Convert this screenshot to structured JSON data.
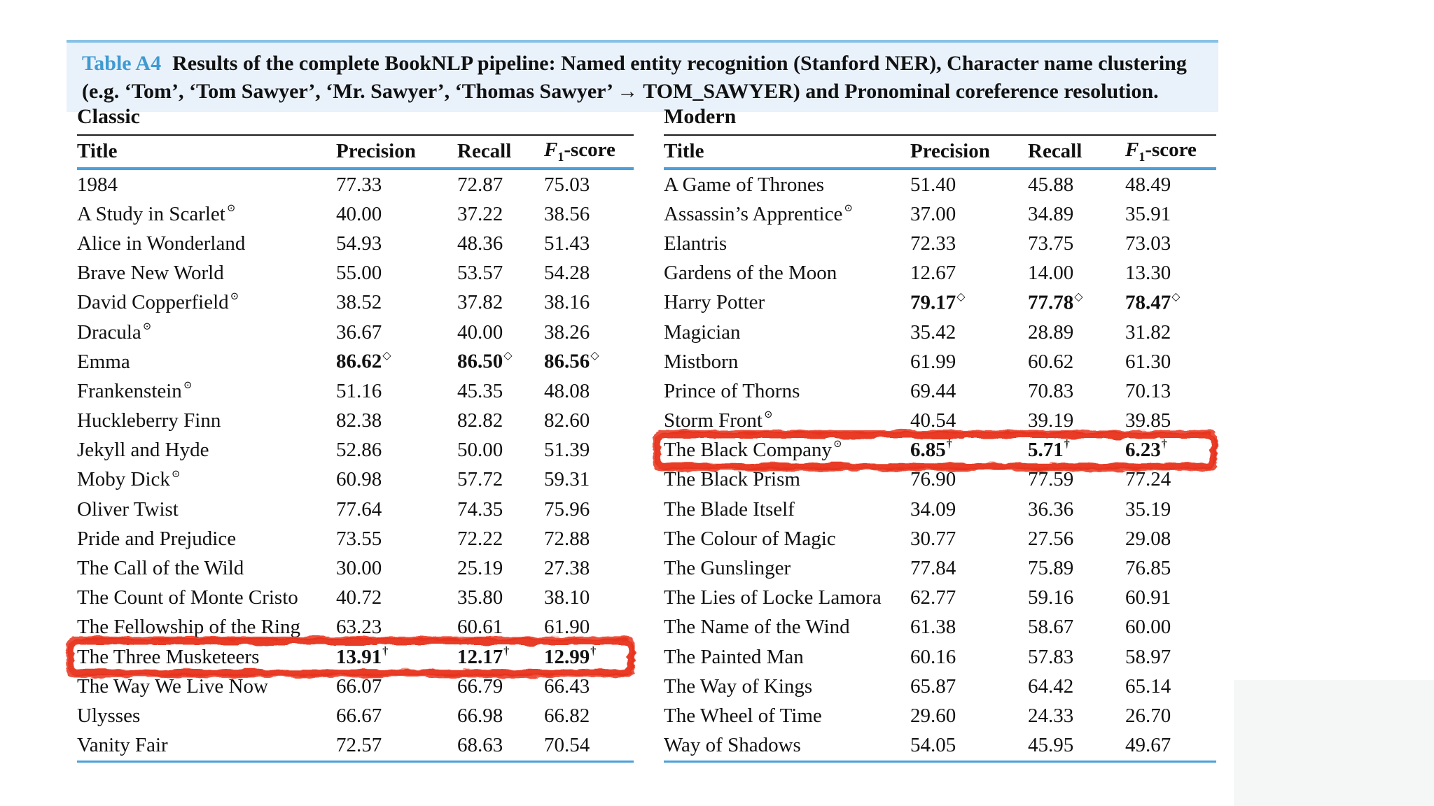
{
  "caption": {
    "label": "Table A4",
    "text": "Results of the complete BookNLP pipeline: Named entity recognition (Stanford NER), Character name clustering (e.g. ‘Tom’, ‘Tom Sawyer’, ‘Mr. Sawyer’, ‘Thomas Sawyer’ → TOM_SAWYER) and Pronominal coreference resolution."
  },
  "columns": {
    "title": "Title",
    "precision": "Precision",
    "recall": "Recall",
    "f1_letter": "F",
    "f1_sub": "1",
    "f1_rest": "-score"
  },
  "symbols": {
    "title_marker": "⊙",
    "diamond": "◇",
    "dagger": "†"
  },
  "colors": {
    "accent_blue": "#4ba0d9",
    "caption_bg": "#e9f1fa",
    "caption_label_blue": "#3f9ad1",
    "annotation_red": "#e8301b"
  },
  "chart_data": {
    "type": "table",
    "title": "Table A4 Results of the complete BookNLP pipeline",
    "groups": [
      {
        "name": "Classic",
        "columns": [
          "Title",
          "Precision",
          "Recall",
          "F1-score"
        ],
        "rows": [
          {
            "title": "1984",
            "title_sup": false,
            "precision": "77.33",
            "recall": "72.87",
            "f1": "75.03",
            "bold": false,
            "marker": null,
            "annotated": false
          },
          {
            "title": "A Study in Scarlet",
            "title_sup": true,
            "precision": "40.00",
            "recall": "37.22",
            "f1": "38.56",
            "bold": false,
            "marker": null,
            "annotated": false
          },
          {
            "title": "Alice in Wonderland",
            "title_sup": false,
            "precision": "54.93",
            "recall": "48.36",
            "f1": "51.43",
            "bold": false,
            "marker": null,
            "annotated": false
          },
          {
            "title": "Brave New World",
            "title_sup": false,
            "precision": "55.00",
            "recall": "53.57",
            "f1": "54.28",
            "bold": false,
            "marker": null,
            "annotated": false
          },
          {
            "title": "David Copperfield",
            "title_sup": true,
            "precision": "38.52",
            "recall": "37.82",
            "f1": "38.16",
            "bold": false,
            "marker": null,
            "annotated": false
          },
          {
            "title": "Dracula",
            "title_sup": true,
            "precision": "36.67",
            "recall": "40.00",
            "f1": "38.26",
            "bold": false,
            "marker": null,
            "annotated": false
          },
          {
            "title": "Emma",
            "title_sup": false,
            "precision": "86.62",
            "recall": "86.50",
            "f1": "86.56",
            "bold": true,
            "marker": "diamond",
            "annotated": false
          },
          {
            "title": "Frankenstein",
            "title_sup": true,
            "precision": "51.16",
            "recall": "45.35",
            "f1": "48.08",
            "bold": false,
            "marker": null,
            "annotated": false
          },
          {
            "title": "Huckleberry Finn",
            "title_sup": false,
            "precision": "82.38",
            "recall": "82.82",
            "f1": "82.60",
            "bold": false,
            "marker": null,
            "annotated": false
          },
          {
            "title": "Jekyll and Hyde",
            "title_sup": false,
            "precision": "52.86",
            "recall": "50.00",
            "f1": "51.39",
            "bold": false,
            "marker": null,
            "annotated": false
          },
          {
            "title": "Moby Dick",
            "title_sup": true,
            "precision": "60.98",
            "recall": "57.72",
            "f1": "59.31",
            "bold": false,
            "marker": null,
            "annotated": false
          },
          {
            "title": "Oliver Twist",
            "title_sup": false,
            "precision": "77.64",
            "recall": "74.35",
            "f1": "75.96",
            "bold": false,
            "marker": null,
            "annotated": false
          },
          {
            "title": "Pride and Prejudice",
            "title_sup": false,
            "precision": "73.55",
            "recall": "72.22",
            "f1": "72.88",
            "bold": false,
            "marker": null,
            "annotated": false
          },
          {
            "title": "The Call of the Wild",
            "title_sup": false,
            "precision": "30.00",
            "recall": "25.19",
            "f1": "27.38",
            "bold": false,
            "marker": null,
            "annotated": false
          },
          {
            "title": "The Count of Monte Cristo",
            "title_sup": false,
            "precision": "40.72",
            "recall": "35.80",
            "f1": "38.10",
            "bold": false,
            "marker": null,
            "annotated": false
          },
          {
            "title": "The Fellowship of the Ring",
            "title_sup": false,
            "precision": "63.23",
            "recall": "60.61",
            "f1": "61.90",
            "bold": false,
            "marker": null,
            "annotated": false
          },
          {
            "title": "The Three Musketeers",
            "title_sup": false,
            "precision": "13.91",
            "recall": "12.17",
            "f1": "12.99",
            "bold": true,
            "marker": "dagger",
            "annotated": true
          },
          {
            "title": "The Way We Live Now",
            "title_sup": false,
            "precision": "66.07",
            "recall": "66.79",
            "f1": "66.43",
            "bold": false,
            "marker": null,
            "annotated": false
          },
          {
            "title": "Ulysses",
            "title_sup": false,
            "precision": "66.67",
            "recall": "66.98",
            "f1": "66.82",
            "bold": false,
            "marker": null,
            "annotated": false
          },
          {
            "title": "Vanity Fair",
            "title_sup": false,
            "precision": "72.57",
            "recall": "68.63",
            "f1": "70.54",
            "bold": false,
            "marker": null,
            "annotated": false
          }
        ]
      },
      {
        "name": "Modern",
        "columns": [
          "Title",
          "Precision",
          "Recall",
          "F1-score"
        ],
        "rows": [
          {
            "title": "A Game of Thrones",
            "title_sup": false,
            "precision": "51.40",
            "recall": "45.88",
            "f1": "48.49",
            "bold": false,
            "marker": null,
            "annotated": false
          },
          {
            "title": "Assassin’s Apprentice",
            "title_sup": true,
            "precision": "37.00",
            "recall": "34.89",
            "f1": "35.91",
            "bold": false,
            "marker": null,
            "annotated": false
          },
          {
            "title": "Elantris",
            "title_sup": false,
            "precision": "72.33",
            "recall": "73.75",
            "f1": "73.03",
            "bold": false,
            "marker": null,
            "annotated": false
          },
          {
            "title": "Gardens of the Moon",
            "title_sup": false,
            "precision": "12.67",
            "recall": "14.00",
            "f1": "13.30",
            "bold": false,
            "marker": null,
            "annotated": false
          },
          {
            "title": "Harry Potter",
            "title_sup": false,
            "precision": "79.17",
            "recall": "77.78",
            "f1": "78.47",
            "bold": true,
            "marker": "diamond",
            "annotated": false
          },
          {
            "title": "Magician",
            "title_sup": false,
            "precision": "35.42",
            "recall": "28.89",
            "f1": "31.82",
            "bold": false,
            "marker": null,
            "annotated": false
          },
          {
            "title": "Mistborn",
            "title_sup": false,
            "precision": "61.99",
            "recall": "60.62",
            "f1": "61.30",
            "bold": false,
            "marker": null,
            "annotated": false
          },
          {
            "title": "Prince of Thorns",
            "title_sup": false,
            "precision": "69.44",
            "recall": "70.83",
            "f1": "70.13",
            "bold": false,
            "marker": null,
            "annotated": false
          },
          {
            "title": "Storm Front",
            "title_sup": true,
            "precision": "40.54",
            "recall": "39.19",
            "f1": "39.85",
            "bold": false,
            "marker": null,
            "annotated": false
          },
          {
            "title": "The Black Company",
            "title_sup": true,
            "precision": "6.85",
            "recall": "5.71",
            "f1": "6.23",
            "bold": true,
            "marker": "dagger",
            "annotated": true
          },
          {
            "title": "The Black Prism",
            "title_sup": false,
            "precision": "76.90",
            "recall": "77.59",
            "f1": "77.24",
            "bold": false,
            "marker": null,
            "annotated": false
          },
          {
            "title": "The Blade Itself",
            "title_sup": false,
            "precision": "34.09",
            "recall": "36.36",
            "f1": "35.19",
            "bold": false,
            "marker": null,
            "annotated": false
          },
          {
            "title": "The Colour of Magic",
            "title_sup": false,
            "precision": "30.77",
            "recall": "27.56",
            "f1": "29.08",
            "bold": false,
            "marker": null,
            "annotated": false
          },
          {
            "title": "The Gunslinger",
            "title_sup": false,
            "precision": "77.84",
            "recall": "75.89",
            "f1": "76.85",
            "bold": false,
            "marker": null,
            "annotated": false
          },
          {
            "title": "The Lies of Locke Lamora",
            "title_sup": false,
            "precision": "62.77",
            "recall": "59.16",
            "f1": "60.91",
            "bold": false,
            "marker": null,
            "annotated": false
          },
          {
            "title": "The Name of the Wind",
            "title_sup": false,
            "precision": "61.38",
            "recall": "58.67",
            "f1": "60.00",
            "bold": false,
            "marker": null,
            "annotated": false
          },
          {
            "title": "The Painted Man",
            "title_sup": false,
            "precision": "60.16",
            "recall": "57.83",
            "f1": "58.97",
            "bold": false,
            "marker": null,
            "annotated": false
          },
          {
            "title": "The Way of Kings",
            "title_sup": false,
            "precision": "65.87",
            "recall": "64.42",
            "f1": "65.14",
            "bold": false,
            "marker": null,
            "annotated": false
          },
          {
            "title": "The Wheel of Time",
            "title_sup": false,
            "precision": "29.60",
            "recall": "24.33",
            "f1": "26.70",
            "bold": false,
            "marker": null,
            "annotated": false
          },
          {
            "title": "Way of Shadows",
            "title_sup": false,
            "precision": "54.05",
            "recall": "45.95",
            "f1": "49.67",
            "bold": false,
            "marker": null,
            "annotated": false
          }
        ]
      }
    ]
  }
}
